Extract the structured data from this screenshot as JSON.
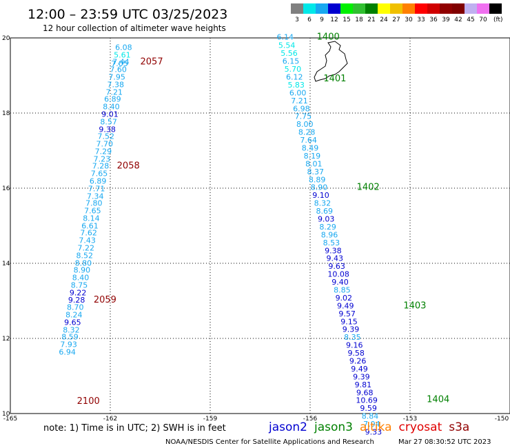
{
  "header": {
    "title": "12:00 – 23:59 UTC 03/25/2023",
    "subtitle": "12 hour collection of altimeter wave heights"
  },
  "colorbar": {
    "bins": [
      {
        "label": "3",
        "color": "#808080"
      },
      {
        "label": "6",
        "color": "#00e8e8"
      },
      {
        "label": "9",
        "color": "#18a8f0"
      },
      {
        "label": "12",
        "color": "#0000d0"
      },
      {
        "label": "15",
        "color": "#00f000"
      },
      {
        "label": "18",
        "color": "#30c030"
      },
      {
        "label": "21",
        "color": "#008000"
      },
      {
        "label": "24",
        "color": "#ffff00"
      },
      {
        "label": "27",
        "color": "#f0c000"
      },
      {
        "label": "30",
        "color": "#ff8000"
      },
      {
        "label": "33",
        "color": "#ff0000"
      },
      {
        "label": "36",
        "color": "#d00000"
      },
      {
        "label": "39",
        "color": "#900000"
      },
      {
        "label": "42",
        "color": "#800000"
      },
      {
        "label": "45",
        "color": "#c0b0f0"
      },
      {
        "label": "70",
        "color": "#f070f0"
      },
      {
        "label": "",
        "color": "#000000"
      }
    ],
    "unit": "(ft)"
  },
  "footer": {
    "note": "note:  1) Time is in UTC; 2) SWH is in feet",
    "credit": "NOAA/NESDIS Center for Satellite Applications and Research",
    "timestamp": "Mar 27 08:30:52 UTC 2023"
  },
  "legend": [
    {
      "name": "jason2",
      "color": "#0000d0"
    },
    {
      "name": "jason3",
      "color": "#008000"
    },
    {
      "name": "altika",
      "color": "#ff8000"
    },
    {
      "name": "cryosat",
      "color": "#e00000"
    },
    {
      "name": "s3a",
      "color": "#900000"
    }
  ],
  "chart_data": {
    "type": "scatter",
    "title": "12:00 – 23:59 UTC 03/25/2023",
    "subtitle": "12 hour collection of altimeter wave heights",
    "xlim": [
      -165,
      -150
    ],
    "ylim": [
      10,
      20
    ],
    "x_ticks": [
      "-165",
      "-162",
      "-159",
      "-156",
      "-153",
      "-150"
    ],
    "y_ticks": [
      "10",
      "12",
      "14",
      "16",
      "18",
      "20"
    ],
    "grid": true,
    "series": [
      {
        "name": "s3a",
        "color": "#900000",
        "points": [
          {
            "lon": -161.6,
            "lat": 19.68,
            "v": "6.08"
          },
          {
            "lon": -161.64,
            "lat": 19.48,
            "v": "5.61"
          },
          {
            "lon": -161.68,
            "lat": 19.29,
            "v": "7.44"
          },
          {
            "lon": -161.72,
            "lat": 19.25,
            "v": "7.05"
          },
          {
            "lon": -161.76,
            "lat": 19.09,
            "v": "7.60"
          },
          {
            "lon": -161.8,
            "lat": 18.89,
            "v": "7.95"
          },
          {
            "lon": -161.84,
            "lat": 18.69,
            "v": "7.38"
          },
          {
            "lon": -161.88,
            "lat": 18.49,
            "v": "7.21"
          },
          {
            "lon": -161.93,
            "lat": 18.3,
            "v": "6.89"
          },
          {
            "lon": -161.97,
            "lat": 18.1,
            "v": "8.40"
          },
          {
            "lon": -162.01,
            "lat": 17.9,
            "v": "9.01"
          },
          {
            "lon": -162.05,
            "lat": 17.7,
            "v": "8.57"
          },
          {
            "lon": -162.09,
            "lat": 17.5,
            "v": "9.38"
          },
          {
            "lon": -162.13,
            "lat": 17.31,
            "v": "7.52"
          },
          {
            "lon": -162.17,
            "lat": 17.11,
            "v": "7.70"
          },
          {
            "lon": -162.21,
            "lat": 16.91,
            "v": "7.29"
          },
          {
            "lon": -162.25,
            "lat": 16.71,
            "v": "7.23"
          },
          {
            "lon": -162.29,
            "lat": 16.52,
            "v": "7.28"
          },
          {
            "lon": -162.33,
            "lat": 16.32,
            "v": "7.65"
          },
          {
            "lon": -162.37,
            "lat": 16.12,
            "v": "6.89"
          },
          {
            "lon": -162.41,
            "lat": 15.92,
            "v": "7.71"
          },
          {
            "lon": -162.45,
            "lat": 15.72,
            "v": "7.34"
          },
          {
            "lon": -162.49,
            "lat": 15.53,
            "v": "7.80"
          },
          {
            "lon": -162.53,
            "lat": 15.33,
            "v": "7.65"
          },
          {
            "lon": -162.57,
            "lat": 15.13,
            "v": "8.14"
          },
          {
            "lon": -162.61,
            "lat": 14.93,
            "v": "6.61"
          },
          {
            "lon": -162.65,
            "lat": 14.74,
            "v": "7.62"
          },
          {
            "lon": -162.69,
            "lat": 14.54,
            "v": "7.43"
          },
          {
            "lon": -162.73,
            "lat": 14.34,
            "v": "7.22"
          },
          {
            "lon": -162.77,
            "lat": 14.14,
            "v": "8.52"
          },
          {
            "lon": -162.81,
            "lat": 13.94,
            "v": "8.80"
          },
          {
            "lon": -162.85,
            "lat": 13.75,
            "v": "8.90"
          },
          {
            "lon": -162.89,
            "lat": 13.55,
            "v": "8.40"
          },
          {
            "lon": -162.93,
            "lat": 13.35,
            "v": "8.75"
          },
          {
            "lon": -162.97,
            "lat": 13.15,
            "v": "9.22"
          },
          {
            "lon": -163.01,
            "lat": 12.95,
            "v": "9.28"
          },
          {
            "lon": -163.05,
            "lat": 12.76,
            "v": "8.70"
          },
          {
            "lon": -163.09,
            "lat": 12.56,
            "v": "8.24"
          },
          {
            "lon": -163.13,
            "lat": 12.36,
            "v": "9.65"
          },
          {
            "lon": -163.17,
            "lat": 12.16,
            "v": "8.32"
          },
          {
            "lon": -163.21,
            "lat": 11.97,
            "v": "8.59"
          },
          {
            "lon": -163.25,
            "lat": 11.77,
            "v": "7.93"
          },
          {
            "lon": -163.29,
            "lat": 11.57,
            "v": "6.94"
          }
        ],
        "time_labels": [
          {
            "lon": -161.1,
            "lat": 19.29,
            "t": "2057"
          },
          {
            "lon": -161.8,
            "lat": 16.52,
            "t": "2058"
          },
          {
            "lon": -162.5,
            "lat": 12.95,
            "t": "2059"
          },
          {
            "lon": -163.0,
            "lat": 10.26,
            "t": "2100"
          }
        ]
      },
      {
        "name": "jason3",
        "color": "#008000",
        "points": [
          {
            "lon": -156.75,
            "lat": 19.95,
            "v": "6.14"
          },
          {
            "lon": -156.7,
            "lat": 19.73,
            "v": "5.54"
          },
          {
            "lon": -156.63,
            "lat": 19.52,
            "v": "5.56"
          },
          {
            "lon": -156.58,
            "lat": 19.31,
            "v": "6.15"
          },
          {
            "lon": -156.52,
            "lat": 19.1,
            "v": "5.70"
          },
          {
            "lon": -156.47,
            "lat": 18.89,
            "v": "6.12"
          },
          {
            "lon": -156.42,
            "lat": 18.68,
            "v": "5.83"
          },
          {
            "lon": -156.37,
            "lat": 18.47,
            "v": "6.00"
          },
          {
            "lon": -156.32,
            "lat": 18.26,
            "v": "7.21"
          },
          {
            "lon": -156.26,
            "lat": 18.05,
            "v": "6.98"
          },
          {
            "lon": -156.21,
            "lat": 17.84,
            "v": "7.75"
          },
          {
            "lon": -156.16,
            "lat": 17.63,
            "v": "8.00"
          },
          {
            "lon": -156.1,
            "lat": 17.42,
            "v": "8.28"
          },
          {
            "lon": -156.05,
            "lat": 17.21,
            "v": "7.64"
          },
          {
            "lon": -156.0,
            "lat": 17.0,
            "v": "8.49"
          },
          {
            "lon": -155.94,
            "lat": 16.79,
            "v": "8.19"
          },
          {
            "lon": -155.89,
            "lat": 16.58,
            "v": "8.01"
          },
          {
            "lon": -155.84,
            "lat": 16.37,
            "v": "8.37"
          },
          {
            "lon": -155.79,
            "lat": 16.16,
            "v": "8.89"
          },
          {
            "lon": -155.73,
            "lat": 15.95,
            "v": "8.90"
          },
          {
            "lon": -155.68,
            "lat": 15.74,
            "v": "9.10"
          },
          {
            "lon": -155.63,
            "lat": 15.53,
            "v": "8.32"
          },
          {
            "lon": -155.57,
            "lat": 15.32,
            "v": "8.69"
          },
          {
            "lon": -155.52,
            "lat": 15.11,
            "v": "9.03"
          },
          {
            "lon": -155.47,
            "lat": 14.9,
            "v": "8.29"
          },
          {
            "lon": -155.42,
            "lat": 14.69,
            "v": "8.96"
          },
          {
            "lon": -155.36,
            "lat": 14.48,
            "v": "8.53"
          },
          {
            "lon": -155.31,
            "lat": 14.27,
            "v": "9.38"
          },
          {
            "lon": -155.26,
            "lat": 14.06,
            "v": "9.43"
          },
          {
            "lon": -155.2,
            "lat": 13.85,
            "v": "9.63"
          },
          {
            "lon": -155.15,
            "lat": 13.64,
            "v": "10.08"
          },
          {
            "lon": -155.1,
            "lat": 13.43,
            "v": "9.40"
          },
          {
            "lon": -155.04,
            "lat": 13.22,
            "v": "8.85"
          },
          {
            "lon": -154.99,
            "lat": 13.01,
            "v": "9.02"
          },
          {
            "lon": -154.94,
            "lat": 12.8,
            "v": "9.49"
          },
          {
            "lon": -154.89,
            "lat": 12.59,
            "v": "9.57"
          },
          {
            "lon": -154.83,
            "lat": 12.38,
            "v": "9.15"
          },
          {
            "lon": -154.78,
            "lat": 12.17,
            "v": "9.39"
          },
          {
            "lon": -154.73,
            "lat": 11.96,
            "v": "8.35"
          },
          {
            "lon": -154.67,
            "lat": 11.75,
            "v": "9.16"
          },
          {
            "lon": -154.62,
            "lat": 11.54,
            "v": "9.58"
          },
          {
            "lon": -154.57,
            "lat": 11.33,
            "v": "9.26"
          },
          {
            "lon": -154.52,
            "lat": 11.12,
            "v": "9.49"
          },
          {
            "lon": -154.46,
            "lat": 10.91,
            "v": "9.39"
          },
          {
            "lon": -154.41,
            "lat": 10.7,
            "v": "9.81"
          },
          {
            "lon": -154.36,
            "lat": 10.49,
            "v": "9.68"
          },
          {
            "lon": -154.3,
            "lat": 10.28,
            "v": "10.69"
          },
          {
            "lon": -154.25,
            "lat": 10.07,
            "v": "9.59"
          },
          {
            "lon": -154.2,
            "lat": 9.86,
            "v": "8.84"
          },
          {
            "lon": -154.15,
            "lat": 9.65,
            "v": "7.94"
          },
          {
            "lon": -154.1,
            "lat": 9.44,
            "v": "9.33"
          }
        ],
        "time_labels": [
          {
            "lon": -155.8,
            "lat": 19.95,
            "t": "1400"
          },
          {
            "lon": -155.6,
            "lat": 18.84,
            "t": "1401"
          },
          {
            "lon": -154.6,
            "lat": 15.95,
            "t": "1402"
          },
          {
            "lon": -153.2,
            "lat": 12.8,
            "t": "1403"
          },
          {
            "lon": -152.5,
            "lat": 10.3,
            "t": "1404"
          }
        ]
      }
    ]
  }
}
